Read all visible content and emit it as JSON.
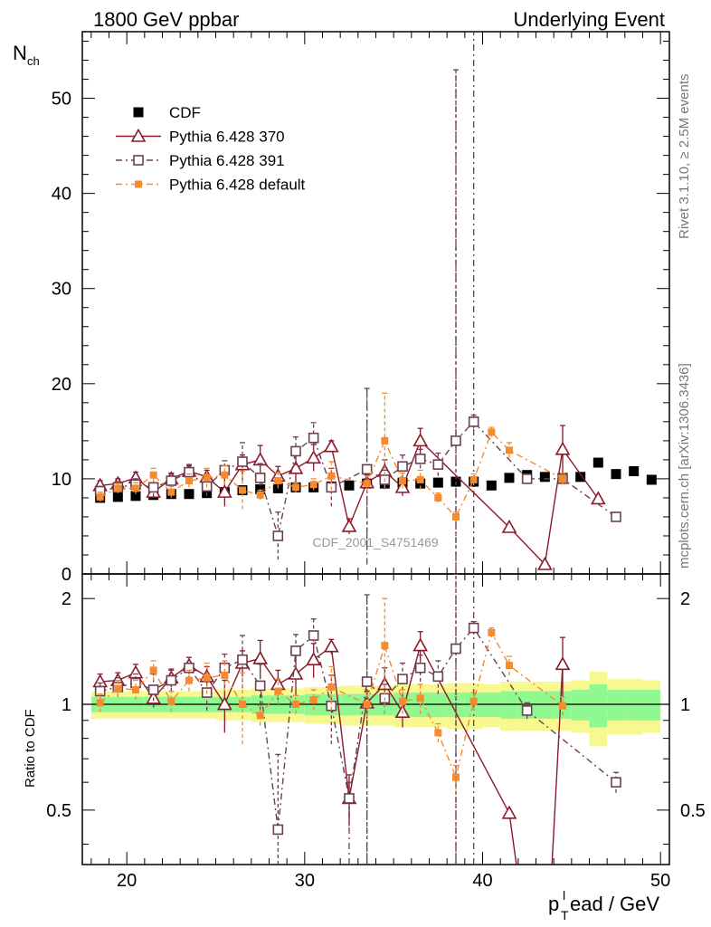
{
  "header": {
    "left": "1800 GeV ppbar",
    "right": "Underlying Event"
  },
  "side_labels": {
    "rivet": "Rivet 3.1.10, ≥ 2.5M events",
    "mcplots": "mcplots.cern.ch [arXiv:1306.3436]"
  },
  "watermark": "CDF_2001_S4751469",
  "colors": {
    "cdf": "#000000",
    "p370": "#8b1a2a",
    "p391": "#6b4050",
    "pdef": "#f58a2e",
    "band_green": "#90f890",
    "band_yellow": "#f8f890"
  },
  "chart_data": [
    {
      "type": "scatter",
      "panel": "main",
      "ylabel_main": "N",
      "ylabel_sub": "ch",
      "xlim": [
        17.5,
        50.5
      ],
      "ylim": [
        0,
        57
      ],
      "yticks": [
        0,
        10,
        20,
        30,
        40,
        50
      ],
      "legend_position": "top-left",
      "series": [
        {
          "name": "CDF",
          "marker": "filled-square",
          "x": [
            18.5,
            19.5,
            20.5,
            21.5,
            22.5,
            23.5,
            24.5,
            25.5,
            26.5,
            27.5,
            28.5,
            29.5,
            30.5,
            31.5,
            32.5,
            33.5,
            34.5,
            35.5,
            36.5,
            37.5,
            38.5,
            39.5,
            40.5,
            41.5,
            42.5,
            43.5,
            44.5,
            45.5,
            46.5,
            47.5,
            48.5,
            49.5
          ],
          "y": [
            8.0,
            8.1,
            8.2,
            8.3,
            8.4,
            8.4,
            8.5,
            8.6,
            8.8,
            8.9,
            9.0,
            9.1,
            9.1,
            9.2,
            9.3,
            9.5,
            9.5,
            9.6,
            9.5,
            9.6,
            9.7,
            9.7,
            9.3,
            10.1,
            10.4,
            10.2,
            10.1,
            10.2,
            11.7,
            10.5,
            10.8,
            9.9
          ]
        },
        {
          "name": "Pythia 6.428 370",
          "marker": "open-triangle",
          "line": "solid",
          "x": [
            18.5,
            19.5,
            20.5,
            21.5,
            22.5,
            23.5,
            24.5,
            25.5,
            26.5,
            27.5,
            28.5,
            29.5,
            30.5,
            31.5,
            32.5,
            33.5,
            34.5,
            35.5,
            36.5,
            41.5,
            43.5,
            44.5,
            46.5
          ],
          "y": [
            9.3,
            9.5,
            10.1,
            8.6,
            10.0,
            10.8,
            10.2,
            8.6,
            11.5,
            12.0,
            10.3,
            11.1,
            12.2,
            13.4,
            5.0,
            9.6,
            10.8,
            9.1,
            14.0,
            4.9,
            1.0,
            13.1,
            7.9
          ],
          "err": [
            0.5,
            0.5,
            0.6,
            0.5,
            0.6,
            0.6,
            0.7,
            1.5,
            1.0,
            1.5,
            1.0,
            1.5,
            1.4,
            0.6,
            0.8,
            0.8,
            1.2,
            0.9,
            1.3,
            0,
            0,
            2.5,
            0
          ]
        },
        {
          "name": "Pythia 6.428 391",
          "marker": "open-square",
          "line": "dashdot",
          "x": [
            18.5,
            19.5,
            20.5,
            21.5,
            22.5,
            23.5,
            24.5,
            25.5,
            26.5,
            27.5,
            28.5,
            29.5,
            30.5,
            31.5,
            33.5,
            34.5,
            35.5,
            36.5,
            37.5,
            38.5,
            39.5,
            42.5,
            44.5,
            47.5
          ],
          "y": [
            8.7,
            9.1,
            9.4,
            9.1,
            9.8,
            10.7,
            9.2,
            10.9,
            11.8,
            10.1,
            4.0,
            12.9,
            14.3,
            9.1,
            11.0,
            9.9,
            11.3,
            12.1,
            11.5,
            14.0,
            16.0,
            10.0,
            10.0,
            6.0
          ],
          "err": [
            0.5,
            0.6,
            0.6,
            1.0,
            0.7,
            0.8,
            1.0,
            1.0,
            2.0,
            1.5,
            2.5,
            1.5,
            1.6,
            2.0,
            8.5,
            1.0,
            1.2,
            1.0,
            1.2,
            39.0,
            0.7,
            0.5,
            0.5,
            0.4
          ]
        },
        {
          "name": "Pythia 6.428 default",
          "marker": "filled-square",
          "line": "dashdot",
          "x": [
            18.5,
            19.5,
            20.5,
            21.5,
            22.5,
            23.5,
            24.5,
            25.5,
            26.5,
            27.5,
            28.5,
            29.5,
            30.5,
            31.5,
            33.5,
            34.5,
            35.5,
            36.5,
            37.5,
            38.5,
            39.5,
            40.5,
            41.5,
            44.5
          ],
          "y": [
            8.1,
            9.0,
            9.0,
            10.4,
            8.6,
            9.8,
            10.1,
            10.4,
            8.8,
            8.3,
            9.8,
            9.1,
            9.4,
            10.3,
            9.5,
            14.0,
            9.8,
            9.9,
            8.0,
            6.0,
            9.9,
            14.9,
            13.0,
            10.0
          ],
          "err": [
            0.5,
            0.5,
            0.6,
            0.7,
            0.6,
            0.7,
            1.0,
            1.0,
            2.0,
            0.5,
            0.8,
            0.5,
            0.6,
            1.5,
            0.8,
            5.0,
            0.8,
            1.0,
            0.5,
            0.5,
            0.6,
            0.5,
            0.8,
            0.6
          ]
        }
      ],
      "vlines": [
        {
          "series": "Pythia 6.428 391",
          "x": 33.5,
          "y1": 1.0,
          "y2": 19.5
        },
        {
          "series": "Pythia 6.428 391",
          "x": 38.5,
          "y1": 0,
          "y2": 53.2
        },
        {
          "series": "Pythia 6.428 391",
          "x": 39.5,
          "y1": 0,
          "y2": 57
        }
      ]
    },
    {
      "type": "scatter",
      "panel": "ratio",
      "ylabel": "Ratio to CDF",
      "xlabel": "p",
      "xlabel_sub": "T",
      "xlabel_sup": "l",
      "xlabel_rest": "ead / GeV",
      "xlim": [
        17.5,
        50.5
      ],
      "ylim": [
        0.35,
        2.35
      ],
      "yticks": [
        0.5,
        1,
        2
      ],
      "ytick_labels": [
        "0.5",
        "1",
        "2"
      ],
      "xticks": [
        20,
        30,
        40,
        50
      ],
      "band_x": [
        18.5,
        19.5,
        20.5,
        21.5,
        22.5,
        23.5,
        24.5,
        25.5,
        26.5,
        27.5,
        28.5,
        29.5,
        30.5,
        31.5,
        32.5,
        33.5,
        34.5,
        35.5,
        36.5,
        37.5,
        38.5,
        39.5,
        40.5,
        41.5,
        42.5,
        43.5,
        44.5,
        45.5,
        46.5,
        47.5,
        48.5,
        49.5
      ],
      "band_green": [
        0.05,
        0.05,
        0.05,
        0.05,
        0.05,
        0.05,
        0.05,
        0.05,
        0.05,
        0.06,
        0.06,
        0.06,
        0.07,
        0.07,
        0.07,
        0.07,
        0.07,
        0.08,
        0.08,
        0.08,
        0.08,
        0.08,
        0.08,
        0.09,
        0.09,
        0.09,
        0.09,
        0.1,
        0.14,
        0.1,
        0.1,
        0.1
      ],
      "band_yellow": [
        0.09,
        0.09,
        0.09,
        0.09,
        0.09,
        0.09,
        0.09,
        0.1,
        0.1,
        0.11,
        0.11,
        0.11,
        0.12,
        0.12,
        0.13,
        0.13,
        0.13,
        0.14,
        0.14,
        0.14,
        0.15,
        0.15,
        0.14,
        0.16,
        0.16,
        0.16,
        0.16,
        0.17,
        0.24,
        0.18,
        0.18,
        0.17
      ],
      "series": [
        {
          "name": "Pythia 6.428 370",
          "x": [
            18.5,
            19.5,
            20.5,
            21.5,
            22.5,
            23.5,
            24.5,
            25.5,
            26.5,
            27.5,
            28.5,
            29.5,
            30.5,
            31.5,
            32.5,
            33.5,
            34.5,
            35.5,
            36.5,
            41.5,
            44.5
          ],
          "y": [
            1.16,
            1.17,
            1.23,
            1.04,
            1.19,
            1.29,
            1.2,
            1.0,
            1.31,
            1.35,
            1.14,
            1.22,
            1.34,
            1.46,
            0.54,
            1.01,
            1.14,
            0.95,
            1.47,
            0.49,
            1.3
          ],
          "err": [
            0.06,
            0.06,
            0.07,
            0.06,
            0.07,
            0.07,
            0.08,
            0.17,
            0.11,
            0.17,
            0.11,
            0.16,
            0.15,
            0.07,
            0.09,
            0.08,
            0.13,
            0.09,
            0.14,
            0,
            0.25
          ],
          "x_line": [
            18.5,
            19.5,
            20.5,
            21.5,
            22.5,
            23.5,
            24.5,
            25.5,
            26.5,
            27.5,
            28.5,
            29.5,
            30.5,
            31.5,
            32.5,
            33.5,
            34.5,
            35.5,
            36.5,
            41.5,
            41.9
          ],
          "y_line": [
            1.16,
            1.17,
            1.23,
            1.04,
            1.19,
            1.29,
            1.2,
            1.0,
            1.31,
            1.35,
            1.14,
            1.22,
            1.34,
            1.46,
            0.54,
            1.01,
            1.14,
            0.95,
            1.47,
            0.49,
            0.35
          ],
          "x_line2": [
            43.9,
            44.5
          ],
          "y_line2": [
            0.35,
            1.3
          ]
        },
        {
          "name": "Pythia 6.428 391",
          "x": [
            18.5,
            19.5,
            20.5,
            21.5,
            22.5,
            23.5,
            24.5,
            25.5,
            26.5,
            27.5,
            28.5,
            29.5,
            30.5,
            31.5,
            32.5,
            33.5,
            34.5,
            35.5,
            36.5,
            37.5,
            38.5,
            39.5,
            42.5,
            47.5
          ],
          "y": [
            1.09,
            1.12,
            1.15,
            1.1,
            1.17,
            1.27,
            1.08,
            1.27,
            1.34,
            1.13,
            0.44,
            1.42,
            1.57,
            0.99,
            0.54,
            1.16,
            1.04,
            1.18,
            1.27,
            1.2,
            1.44,
            1.65,
            0.96,
            0.6
          ],
          "err": [
            0.06,
            0.07,
            0.07,
            0.12,
            0.08,
            0.09,
            0.12,
            0.12,
            0.23,
            0.17,
            0.28,
            0.16,
            0.18,
            0.22,
            0.06,
            0.89,
            0.1,
            0.13,
            0.11,
            0.13,
            4.0,
            0.07,
            0.05,
            0.04
          ]
        },
        {
          "name": "Pythia 6.428 default",
          "x": [
            18.5,
            19.5,
            20.5,
            21.5,
            22.5,
            23.5,
            24.5,
            25.5,
            26.5,
            27.5,
            28.5,
            29.5,
            30.5,
            31.5,
            33.5,
            34.5,
            35.5,
            36.5,
            37.5,
            38.5,
            39.5,
            40.5,
            41.5,
            44.5
          ],
          "y": [
            1.01,
            1.11,
            1.1,
            1.25,
            1.02,
            1.17,
            1.19,
            1.21,
            1.0,
            0.93,
            1.09,
            1.0,
            1.03,
            1.12,
            1.0,
            1.47,
            1.02,
            1.04,
            0.83,
            0.62,
            1.02,
            1.6,
            1.29,
            0.99
          ],
          "err": [
            0.06,
            0.06,
            0.07,
            0.08,
            0.07,
            0.08,
            0.12,
            0.12,
            0.23,
            0.06,
            0.09,
            0.06,
            0.07,
            0.16,
            0.08,
            0.53,
            0.08,
            0.1,
            0.05,
            0.05,
            0.06,
            0.05,
            0.08,
            0.06
          ]
        }
      ],
      "vlines": [
        {
          "series": "Pythia 6.428 391",
          "x": 32.5,
          "y1": 0.35,
          "y2": 0.6
        },
        {
          "series": "Pythia 6.428 391",
          "x": 33.5,
          "y1": 0.35,
          "y2": 2.05
        },
        {
          "series": "Pythia 6.428 391",
          "x": 38.5,
          "y1": 0.35,
          "y2": 2.35
        },
        {
          "series": "Pythia 6.428 391",
          "x": 39.5,
          "y1": 0.35,
          "y2": 2.35
        }
      ]
    }
  ]
}
